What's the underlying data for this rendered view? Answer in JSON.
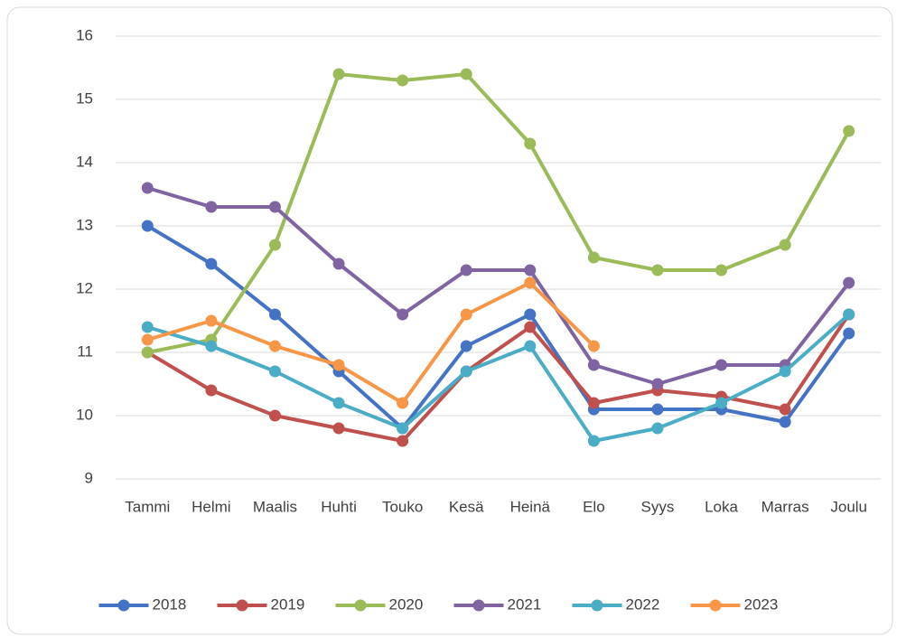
{
  "chart_data": {
    "type": "line",
    "categories": [
      "Tammi",
      "Helmi",
      "Maalis",
      "Huhti",
      "Touko",
      "Kesä",
      "Heinä",
      "Elo",
      "Syys",
      "Loka",
      "Marras",
      "Joulu"
    ],
    "series": [
      {
        "name": "2018",
        "color": "#4472c4",
        "values": [
          13.0,
          12.4,
          11.6,
          10.7,
          9.8,
          11.1,
          11.6,
          10.1,
          10.1,
          10.1,
          9.9,
          11.3
        ]
      },
      {
        "name": "2019",
        "color": "#c0504d",
        "values": [
          11.0,
          10.4,
          10.0,
          9.8,
          9.6,
          10.7,
          11.4,
          10.2,
          10.4,
          10.3,
          10.1,
          11.6
        ]
      },
      {
        "name": "2020",
        "color": "#9bbb59",
        "values": [
          11.0,
          11.2,
          12.7,
          15.4,
          15.3,
          15.4,
          14.3,
          12.5,
          12.3,
          12.3,
          12.7,
          14.5
        ]
      },
      {
        "name": "2021",
        "color": "#8064a2",
        "values": [
          13.6,
          13.3,
          13.3,
          12.4,
          11.6,
          12.3,
          12.3,
          10.8,
          10.5,
          10.8,
          10.8,
          12.1
        ]
      },
      {
        "name": "2022",
        "color": "#4bacc6",
        "values": [
          11.4,
          11.1,
          10.7,
          10.2,
          9.8,
          10.7,
          11.1,
          9.6,
          9.8,
          10.2,
          10.7,
          11.6
        ]
      },
      {
        "name": "2023",
        "color": "#f79646",
        "values": [
          11.2,
          11.5,
          11.1,
          10.8,
          10.2,
          11.6,
          12.1,
          11.1,
          null,
          null,
          null,
          null
        ]
      }
    ],
    "ylim": [
      9,
      16
    ],
    "yticks": [
      9,
      10,
      11,
      12,
      13,
      14,
      15,
      16
    ],
    "grid": true,
    "legend": "bottom"
  }
}
